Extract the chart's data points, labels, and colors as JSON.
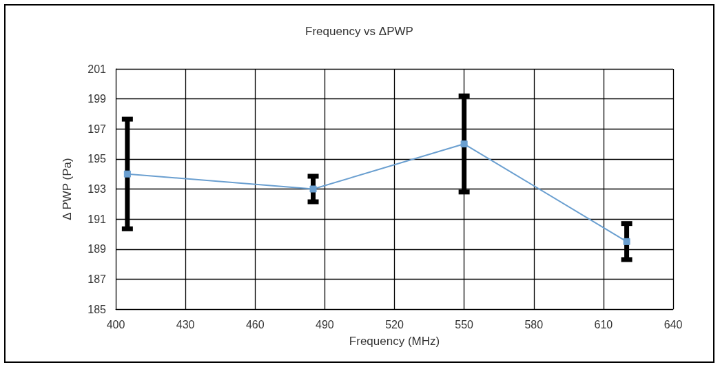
{
  "chart_data": {
    "type": "line",
    "title": "Frequency vs ΔPWP",
    "xlabel": "Frequency (MHz)",
    "ylabel": "Δ PWP (Pa)",
    "x": [
      405,
      485,
      550,
      620
    ],
    "series": [
      {
        "color": "#6a9fd0",
        "values": [
          194.0,
          193.0,
          196.0,
          189.5
        ],
        "errors": [
          3.65,
          0.85,
          3.2,
          1.2
        ]
      }
    ],
    "xlim": [
      400,
      640
    ],
    "xticks": [
      400,
      430,
      460,
      490,
      520,
      550,
      580,
      610,
      640
    ],
    "ylim": [
      185,
      201
    ],
    "yticks": [
      185,
      187,
      189,
      191,
      193,
      195,
      197,
      199,
      201
    ],
    "grid": true,
    "marker": "square",
    "line_style": "solid"
  }
}
